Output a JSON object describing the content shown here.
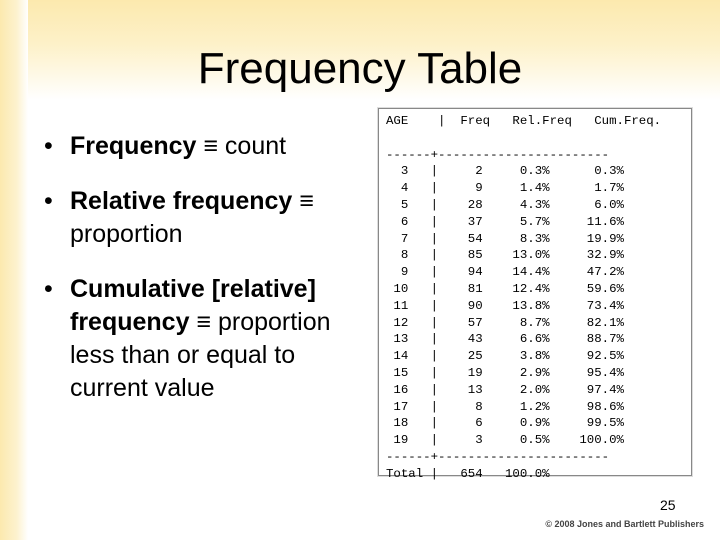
{
  "slide": {
    "title": "Frequency Table",
    "bullets": [
      {
        "bold": "Frequency",
        "rest": " ≡ count"
      },
      {
        "bold": "Relative frequency",
        "rest": " ≡ proportion"
      },
      {
        "bold": "Cumulative [relative] frequency",
        "rest": " ≡ proportion less than or equal to current value"
      }
    ],
    "table": {
      "header": "AGE    |  Freq   Rel.Freq   Cum.Freq.",
      "separator": "------+-----------------------",
      "rows": [
        "  3   |     2     0.3%      0.3%",
        "  4   |     9     1.4%      1.7%",
        "  5   |    28     4.3%      6.0%",
        "  6   |    37     5.7%     11.6%",
        "  7   |    54     8.3%     19.9%",
        "  8   |    85    13.0%     32.9%",
        "  9   |    94    14.4%     47.2%",
        " 10   |    81    12.4%     59.6%",
        " 11   |    90    13.8%     73.4%",
        " 12   |    57     8.7%     82.1%",
        " 13   |    43     6.6%     88.7%",
        " 14   |    25     3.8%     92.5%",
        " 15   |    19     2.9%     95.4%",
        " 16   |    13     2.0%     97.4%",
        " 17   |     8     1.2%     98.6%",
        " 18   |     6     0.9%     99.5%",
        " 19   |     3     0.5%    100.0%"
      ],
      "total": "Total |   654   100.0%"
    },
    "page_number": "25",
    "copyright": "© 2008 Jones and Bartlett Publishers"
  }
}
